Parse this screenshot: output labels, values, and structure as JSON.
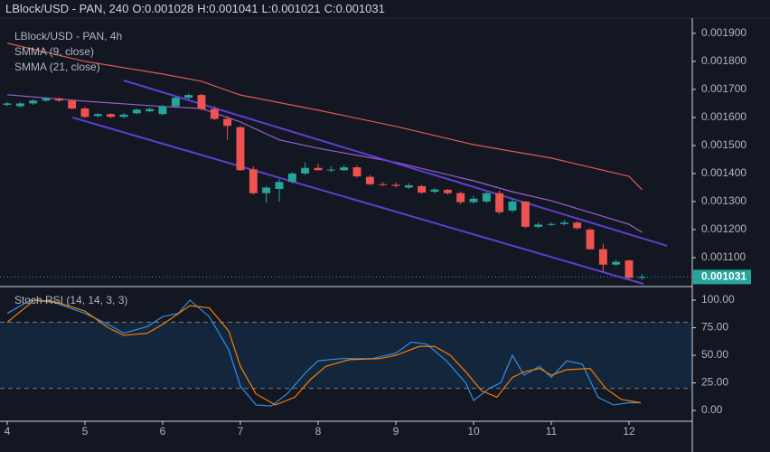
{
  "header": {
    "symbol": "LBlock/USD - PAN, 240",
    "ohlc": [
      {
        "label": "O:",
        "value": 0.001028
      },
      {
        "label": "H:",
        "value": 0.001041
      },
      {
        "label": "L:",
        "value": 0.001021
      },
      {
        "label": "C:",
        "value": 0.001031
      }
    ]
  },
  "chart_data": [
    {
      "type": "candlestick",
      "title": "LBlock/USD - PAN, 4h",
      "up_color": "#26a69a",
      "down_color": "#ef5350",
      "x": [
        4,
        4.167,
        4.333,
        4.5,
        4.667,
        4.833,
        5,
        5.167,
        5.333,
        5.5,
        5.667,
        5.833,
        6,
        6.167,
        6.333,
        6.5,
        6.667,
        6.833,
        7,
        7.167,
        7.333,
        7.5,
        7.667,
        7.833,
        8,
        8.167,
        8.333,
        8.5,
        8.667,
        8.833,
        9,
        9.167,
        9.333,
        9.5,
        9.667,
        9.833,
        10,
        10.167,
        10.333,
        10.5,
        10.667,
        10.833,
        11,
        11.167,
        11.333,
        11.5,
        11.667,
        11.833,
        12,
        12.167
      ],
      "open": [
        0.001645,
        0.00164,
        0.00165,
        0.00166,
        0.001668,
        0.00166,
        0.001632,
        0.001605,
        0.001612,
        0.001602,
        0.001615,
        0.001622,
        0.001612,
        0.00164,
        0.00167,
        0.00168,
        0.00163,
        0.001595,
        0.001565,
        0.001415,
        0.00133,
        0.001345,
        0.00137,
        0.0014,
        0.00142,
        0.001412,
        0.001412,
        0.001422,
        0.001388,
        0.001362,
        0.00136,
        0.00135,
        0.001355,
        0.001335,
        0.001342,
        0.00133,
        0.001298,
        0.0013,
        0.00133,
        0.001268,
        0.0013,
        0.00121,
        0.001218,
        0.00122,
        0.001225,
        0.0012,
        0.00113,
        0.001075,
        0.00109,
        0.001028
      ],
      "high": [
        0.001655,
        0.001655,
        0.001665,
        0.001672,
        0.001672,
        0.001665,
        0.001638,
        0.001615,
        0.001615,
        0.001615,
        0.001632,
        0.001635,
        0.001645,
        0.001675,
        0.001685,
        0.001685,
        0.00164,
        0.001605,
        0.00157,
        0.001425,
        0.001355,
        0.00138,
        0.001405,
        0.00144,
        0.001435,
        0.001425,
        0.00143,
        0.001428,
        0.001395,
        0.00137,
        0.001368,
        0.001365,
        0.00136,
        0.001348,
        0.001345,
        0.001335,
        0.00132,
        0.001335,
        0.00134,
        0.00131,
        0.001302,
        0.001225,
        0.001225,
        0.001235,
        0.00123,
        0.001205,
        0.00115,
        0.001092,
        0.001092,
        0.001041
      ],
      "low": [
        0.00164,
        0.001635,
        0.001645,
        0.001655,
        0.001655,
        0.001628,
        0.001598,
        0.0016,
        0.001598,
        0.001598,
        0.001612,
        0.001618,
        0.001608,
        0.001638,
        0.001665,
        0.001625,
        0.00159,
        0.00152,
        0.00141,
        0.001325,
        0.001295,
        0.0013,
        0.001365,
        0.001395,
        0.00141,
        0.001405,
        0.001408,
        0.001385,
        0.001358,
        0.001355,
        0.00135,
        0.001345,
        0.001328,
        0.00133,
        0.001325,
        0.00129,
        0.001292,
        0.001295,
        0.001255,
        0.001262,
        0.001205,
        0.001205,
        0.001212,
        0.001215,
        0.0012,
        0.001128,
        0.00105,
        0.00107,
        0.001022,
        0.001021
      ],
      "close": [
        0.00165,
        0.00165,
        0.00166,
        0.001668,
        0.00166,
        0.001632,
        0.001602,
        0.001612,
        0.001602,
        0.00161,
        0.001628,
        0.00163,
        0.00164,
        0.00167,
        0.00168,
        0.00163,
        0.001595,
        0.00157,
        0.001412,
        0.00133,
        0.00135,
        0.00137,
        0.0014,
        0.00142,
        0.001412,
        0.001414,
        0.001422,
        0.00139,
        0.001362,
        0.00136,
        0.001356,
        0.001358,
        0.001332,
        0.001343,
        0.00133,
        0.001298,
        0.00131,
        0.00133,
        0.001262,
        0.0013,
        0.00121,
        0.001218,
        0.00122,
        0.001225,
        0.001205,
        0.00113,
        0.001075,
        0.001085,
        0.001028,
        0.001031
      ],
      "series": [
        {
          "name": "SMMA (9, close)",
          "color": "#9c5fd6",
          "x": [
            4,
            5,
            6,
            6.5,
            7,
            7.5,
            8,
            9,
            10,
            10.5,
            11,
            11.5,
            12,
            12.17
          ],
          "values": [
            0.001681,
            0.001658,
            0.001639,
            0.001632,
            0.001584,
            0.00152,
            0.00149,
            0.00144,
            0.001374,
            0.001335,
            0.001303,
            0.001261,
            0.001219,
            0.00119
          ]
        },
        {
          "name": "SMMA (21, close)",
          "color": "#e0584f",
          "x": [
            4,
            5,
            6,
            6.5,
            7,
            8,
            9,
            10,
            11,
            12,
            12.17
          ],
          "values": [
            0.001865,
            0.0018,
            0.001755,
            0.001729,
            0.00168,
            0.001626,
            0.001568,
            0.001503,
            0.001455,
            0.00139,
            0.001342
          ]
        }
      ],
      "trendlines": [
        {
          "color": "#5e3fd0",
          "x": [
            5.5,
            12.49
          ],
          "values": [
            0.001732,
            0.001142
          ]
        },
        {
          "color": "#5e3fd0",
          "x": [
            4.84,
            12.19
          ],
          "values": [
            0.0016,
            0.001006
          ]
        }
      ],
      "last_price": {
        "value": 0.001031,
        "label": "0.001031",
        "color": "#26a69a"
      },
      "xlim": [
        3.907,
        12.814
      ],
      "ylim": [
        0.001,
        0.001948
      ],
      "yticks": [
        {
          "value": 0.0011,
          "label": "0.001100"
        },
        {
          "value": 0.0012,
          "label": "0.001200"
        },
        {
          "value": 0.0013,
          "label": "0.001300"
        },
        {
          "value": 0.0014,
          "label": "0.001400"
        },
        {
          "value": 0.0015,
          "label": "0.001500"
        },
        {
          "value": 0.0016,
          "label": "0.001600"
        },
        {
          "value": 0.0017,
          "label": "0.001700"
        },
        {
          "value": 0.0018,
          "label": "0.001800"
        },
        {
          "value": 0.0019,
          "label": "0.001900"
        }
      ]
    },
    {
      "type": "line",
      "title": "Stoch RSI (14, 14, 3, 3)",
      "series": [
        {
          "color": "#2f8fe8",
          "x": [
            4,
            4.3,
            4.6,
            5,
            5.3,
            5.5,
            5.8,
            6,
            6.2,
            6.35,
            6.6,
            6.85,
            7,
            7.2,
            7.4,
            7.6,
            7.85,
            8,
            8.3,
            8.7,
            9,
            9.2,
            9.4,
            9.65,
            9.9,
            10,
            10.2,
            10.35,
            10.5,
            10.65,
            10.85,
            11,
            11.2,
            11.4,
            11.6,
            11.8,
            12,
            12.15
          ],
          "values": [
            88,
            100,
            98,
            88,
            78,
            70,
            76,
            85,
            88,
            100,
            85,
            55,
            22,
            5,
            4,
            15,
            35,
            45,
            47,
            47,
            52,
            62,
            60,
            45,
            25,
            9,
            20,
            25,
            50,
            32,
            40,
            30,
            45,
            42,
            12,
            5,
            7,
            7
          ]
        },
        {
          "color": "#f57c00",
          "x": [
            4,
            4.35,
            4.6,
            5,
            5.3,
            5.5,
            5.8,
            6,
            6.35,
            6.6,
            6.85,
            7,
            7.2,
            7.45,
            7.7,
            7.9,
            8.1,
            8.4,
            8.8,
            9,
            9.3,
            9.5,
            9.7,
            9.9,
            10.1,
            10.3,
            10.5,
            10.65,
            10.85,
            11,
            11.2,
            11.5,
            11.7,
            11.9,
            12.15
          ],
          "values": [
            80,
            100,
            99,
            90,
            75,
            68,
            70,
            78,
            95,
            93,
            72,
            40,
            15,
            5,
            12,
            28,
            40,
            46,
            47,
            50,
            58,
            58,
            50,
            35,
            18,
            12,
            30,
            35,
            38,
            32,
            37,
            38,
            20,
            10,
            7
          ]
        }
      ],
      "bands": [
        20,
        80
      ],
      "xlim": [
        3.907,
        12.814
      ],
      "ylim": [
        -9,
        111.5
      ],
      "yticks": [
        {
          "value": 0,
          "label": "0.00"
        },
        {
          "value": 25,
          "label": "25.00"
        },
        {
          "value": 50,
          "label": "50.00"
        },
        {
          "value": 75,
          "label": "75.00"
        },
        {
          "value": 100,
          "label": "100.00"
        }
      ],
      "xticks": [
        4,
        5,
        6,
        7,
        8,
        9,
        10,
        11,
        12
      ]
    }
  ]
}
